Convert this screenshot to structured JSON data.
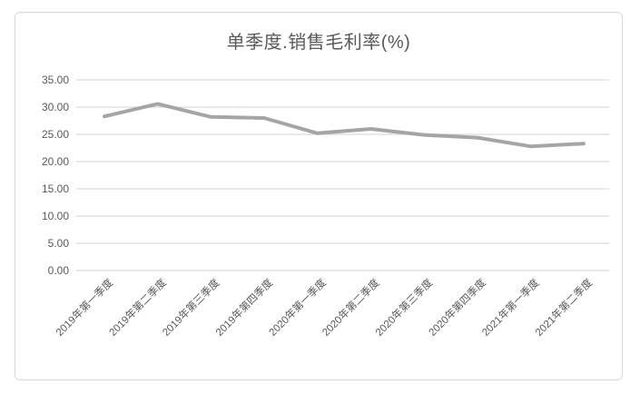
{
  "chart_data": {
    "type": "line",
    "title": "单季度.销售毛利率(%)",
    "categories": [
      "2019年第一季度",
      "2019年第二季度",
      "2019年第三季度",
      "2019年第四季度",
      "2020年第一季度",
      "2020年第二季度",
      "2020年第三季度",
      "2020年第四季度",
      "2021年第一季度",
      "2021年第二季度"
    ],
    "series": [
      {
        "name": "单季度.销售毛利率(%)",
        "values": [
          28.3,
          30.6,
          28.2,
          28.0,
          25.2,
          26.0,
          24.9,
          24.4,
          22.8,
          23.3
        ]
      }
    ],
    "ylim": [
      0,
      35
    ],
    "y_tick_step": 5,
    "y_tick_labels": [
      "35.00",
      "30.00",
      "25.00",
      "20.00",
      "15.00",
      "10.00",
      "5.00",
      "0.00"
    ],
    "xlabel": "",
    "ylabel": "",
    "grid": "horizontal",
    "legend": "none",
    "colors": {
      "line": "#a5a5a5",
      "gridline": "#d9d9d9",
      "tick_text": "#595959",
      "title_text": "#595959",
      "frame_border": "#d8d8d8",
      "background": "#ffffff"
    }
  }
}
